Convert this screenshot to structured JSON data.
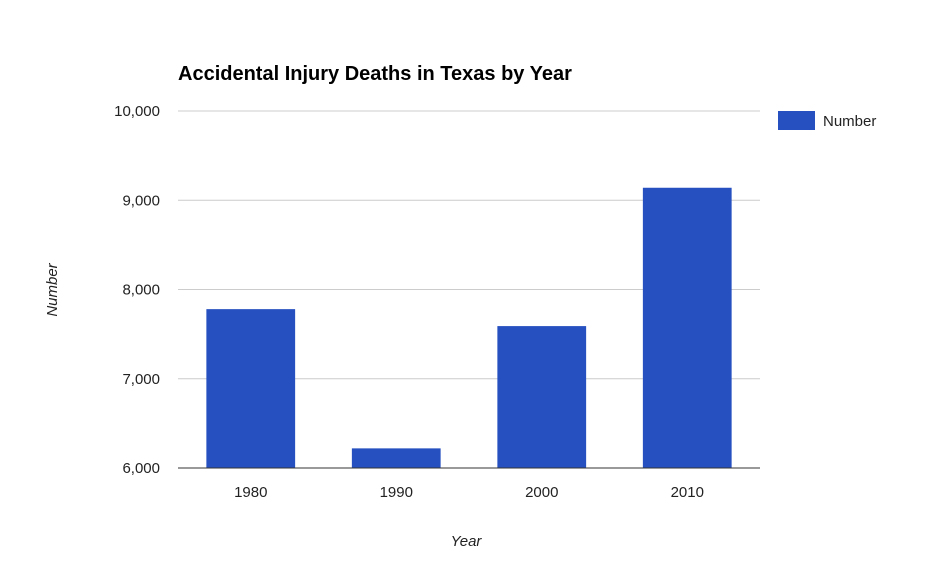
{
  "chart_data": {
    "type": "bar",
    "title": "Accidental Injury Deaths in Texas by Year",
    "xlabel": "Year",
    "ylabel": "Number",
    "categories": [
      "1980",
      "1990",
      "2000",
      "2010"
    ],
    "series": [
      {
        "name": "Number",
        "values": [
          7780,
          6220,
          7590,
          9140
        ],
        "color": "#2650c0"
      }
    ],
    "ylim": [
      6000,
      10000
    ],
    "yticks": [
      6000,
      7000,
      8000,
      9000,
      10000
    ],
    "ytick_labels": [
      "6,000",
      "7,000",
      "8,000",
      "9,000",
      "10,000"
    ],
    "grid": true,
    "legend_position": "right"
  }
}
